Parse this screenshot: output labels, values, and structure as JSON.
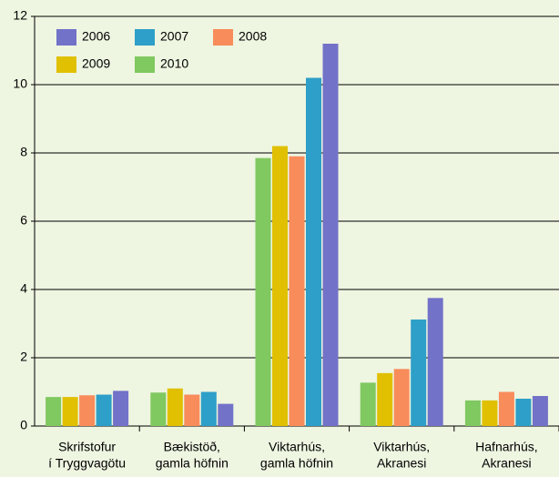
{
  "chart_data": {
    "type": "bar",
    "categories": [
      [
        "Skrifstofur",
        "í Tryggvagötu"
      ],
      [
        "Bækistöð,",
        "gamla höfnin"
      ],
      [
        "Viktarhús,",
        "gamla höfnin"
      ],
      [
        "Viktarhús,",
        "Akranesi"
      ],
      [
        "Hafnarhús,",
        "Akranesi"
      ]
    ],
    "series": [
      {
        "name": "2006",
        "color": "#7272c8",
        "values": [
          1.03,
          0.65,
          11.2,
          3.75,
          0.88
        ]
      },
      {
        "name": "2007",
        "color": "#2e9fc8",
        "values": [
          0.92,
          1.0,
          10.2,
          3.12,
          0.8
        ]
      },
      {
        "name": "2008",
        "color": "#f88c5a",
        "values": [
          0.9,
          0.92,
          7.9,
          1.67,
          1.0
        ]
      },
      {
        "name": "2009",
        "color": "#e0c000",
        "values": [
          0.85,
          1.1,
          8.2,
          1.55,
          0.75
        ]
      },
      {
        "name": "2010",
        "color": "#80c860",
        "values": [
          0.85,
          0.98,
          7.85,
          1.27,
          0.75
        ]
      }
    ],
    "ylim": [
      0,
      12
    ],
    "yticks": [
      0,
      2,
      4,
      6,
      8,
      10,
      12
    ],
    "grid": true
  }
}
